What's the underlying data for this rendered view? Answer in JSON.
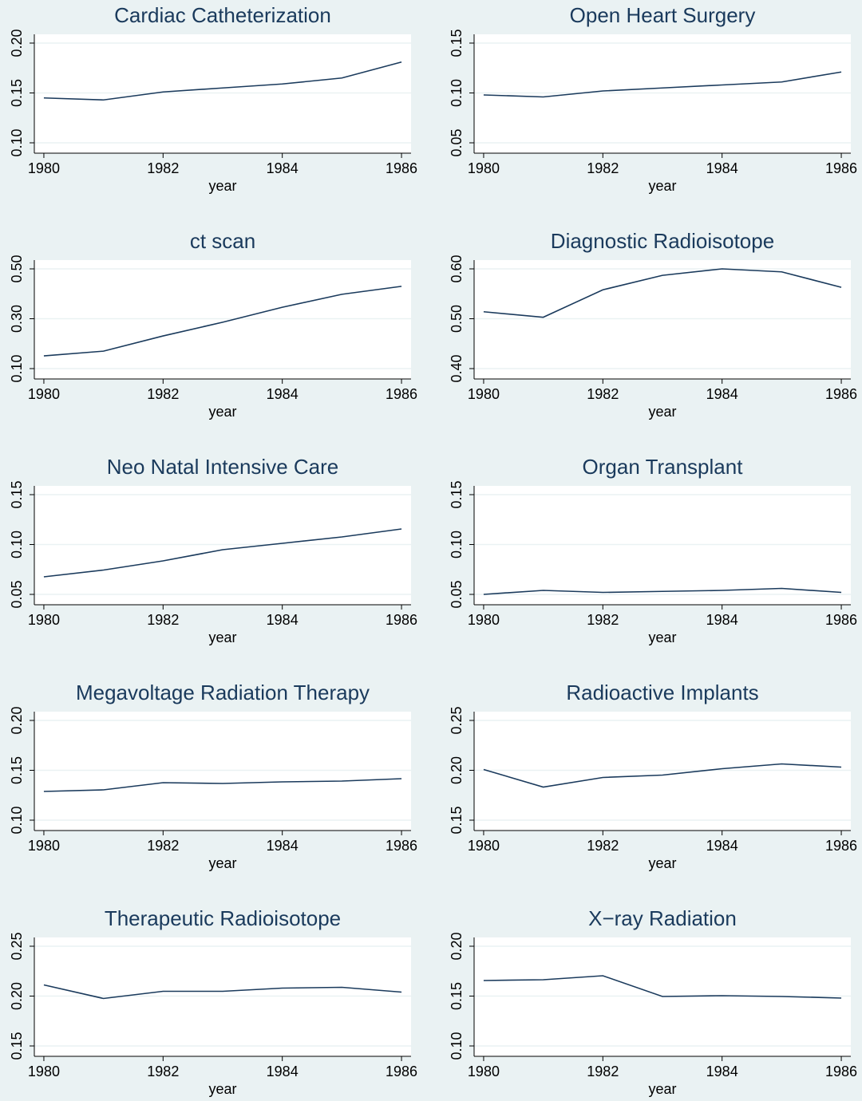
{
  "chart_data": [
    {
      "type": "line",
      "title": "Cardiac Catheterization",
      "xlabel": "year",
      "x": [
        1980,
        1981,
        1982,
        1983,
        1984,
        1985,
        1986
      ],
      "values": [
        0.145,
        0.143,
        0.151,
        0.155,
        0.159,
        0.165,
        0.181
      ],
      "color": "#1a3a5c",
      "xlim": [
        1979.84,
        1986.16
      ],
      "xticks": [
        1980,
        1982,
        1984,
        1986
      ],
      "ylim": [
        0.0896,
        0.2088
      ],
      "yticks": [
        {
          "value": 0.1,
          "label": "0.10"
        },
        0.15,
        {
          "value": 0.2,
          "label": "0.20"
        }
      ],
      "grid": true
    },
    {
      "type": "line",
      "title": "Open Heart Surgery",
      "xlabel": "year",
      "x": [
        1980,
        1981,
        1982,
        1983,
        1984,
        1985,
        1986
      ],
      "values": [
        0.098,
        0.096,
        0.102,
        0.105,
        0.108,
        0.111,
        0.121
      ],
      "color": "#1a3a5c",
      "xlim": [
        1979.84,
        1986.16
      ],
      "xticks": [
        1980,
        1982,
        1984,
        1986
      ],
      "ylim": [
        0.0396,
        0.1588
      ],
      "yticks": [
        0.05,
        {
          "value": 0.1,
          "label": "0.10"
        },
        0.15
      ],
      "grid": true
    },
    {
      "type": "line",
      "title": "ct scan",
      "xlabel": "year",
      "x": [
        1980,
        1981,
        1982,
        1983,
        1984,
        1985,
        1986
      ],
      "values": [
        0.151,
        0.17,
        0.231,
        0.286,
        0.346,
        0.398,
        0.43
      ],
      "color": "#1a3a5c",
      "xlim": [
        1979.84,
        1986.16
      ],
      "xticks": [
        1980,
        1982,
        1984,
        1986
      ],
      "ylim": [
        0.0584,
        0.5352
      ],
      "yticks": [
        {
          "value": 0.1,
          "label": "0.10"
        },
        {
          "value": 0.3,
          "label": "0.30"
        },
        {
          "value": 0.5,
          "label": "0.50"
        }
      ],
      "grid": true
    },
    {
      "type": "line",
      "title": "Diagnostic Radioisotope",
      "xlabel": "year",
      "x": [
        1980,
        1981,
        1982,
        1983,
        1984,
        1985,
        1986
      ],
      "values": [
        0.514,
        0.503,
        0.558,
        0.587,
        0.6,
        0.594,
        0.563
      ],
      "color": "#1a3a5c",
      "xlim": [
        1979.84,
        1986.16
      ],
      "xticks": [
        1980,
        1982,
        1984,
        1986
      ],
      "ylim": [
        0.3792,
        0.6176
      ],
      "yticks": [
        {
          "value": 0.4,
          "label": "0.40"
        },
        {
          "value": 0.5,
          "label": "0.50"
        },
        {
          "value": 0.6,
          "label": "0.60"
        }
      ],
      "grid": true
    },
    {
      "type": "line",
      "title": "Neo Natal Intensive Care",
      "xlabel": "year",
      "x": [
        1980,
        1981,
        1982,
        1983,
        1984,
        1985,
        1986
      ],
      "values": [
        0.0676,
        0.0744,
        0.0836,
        0.0948,
        0.1012,
        0.1076,
        0.1156
      ],
      "color": "#1a3a5c",
      "xlim": [
        1979.84,
        1986.16
      ],
      "xticks": [
        1980,
        1982,
        1984,
        1986
      ],
      "ylim": [
        0.0396,
        0.1588
      ],
      "yticks": [
        0.05,
        {
          "value": 0.1,
          "label": "0.10"
        },
        0.15
      ],
      "grid": true
    },
    {
      "type": "line",
      "title": "Organ Transplant",
      "xlabel": "year",
      "x": [
        1980,
        1981,
        1982,
        1983,
        1984,
        1985,
        1986
      ],
      "values": [
        0.05,
        0.054,
        0.052,
        0.053,
        0.054,
        0.056,
        0.052
      ],
      "color": "#1a3a5c",
      "xlim": [
        1979.84,
        1986.16
      ],
      "xticks": [
        1980,
        1982,
        1984,
        1986
      ],
      "ylim": [
        0.0396,
        0.1588
      ],
      "yticks": [
        0.05,
        {
          "value": 0.1,
          "label": "0.10"
        },
        0.15
      ],
      "grid": true
    },
    {
      "type": "line",
      "title": "Megavoltage Radiation Therapy",
      "xlabel": "year",
      "x": [
        1980,
        1981,
        1982,
        1983,
        1984,
        1985,
        1986
      ],
      "values": [
        0.1288,
        0.1304,
        0.1376,
        0.1368,
        0.1384,
        0.1392,
        0.1416
      ],
      "color": "#1a3a5c",
      "xlim": [
        1979.84,
        1986.16
      ],
      "xticks": [
        1980,
        1982,
        1984,
        1986
      ],
      "ylim": [
        0.0896,
        0.2088
      ],
      "yticks": [
        {
          "value": 0.1,
          "label": "0.10"
        },
        0.15,
        {
          "value": 0.2,
          "label": "0.20"
        }
      ],
      "grid": true
    },
    {
      "type": "line",
      "title": "Radioactive Implants",
      "xlabel": "year",
      "x": [
        1980,
        1981,
        1982,
        1983,
        1984,
        1985,
        1986
      ],
      "values": [
        0.2008,
        0.1832,
        0.1928,
        0.1952,
        0.2016,
        0.2064,
        0.2032
      ],
      "color": "#1a3a5c",
      "xlim": [
        1979.84,
        1986.16
      ],
      "xticks": [
        1980,
        1982,
        1984,
        1986
      ],
      "ylim": [
        0.1396,
        0.2588
      ],
      "yticks": [
        0.15,
        {
          "value": 0.2,
          "label": "0.20"
        },
        0.25
      ],
      "grid": true
    },
    {
      "type": "line",
      "title": "Therapeutic Radioisotope",
      "xlabel": "year",
      "x": [
        1980,
        1981,
        1982,
        1983,
        1984,
        1985,
        1986
      ],
      "values": [
        0.2112,
        0.1976,
        0.2048,
        0.2048,
        0.208,
        0.2088,
        0.204
      ],
      "color": "#1a3a5c",
      "xlim": [
        1979.84,
        1986.16
      ],
      "xticks": [
        1980,
        1982,
        1984,
        1986
      ],
      "ylim": [
        0.1396,
        0.2588
      ],
      "yticks": [
        0.15,
        {
          "value": 0.2,
          "label": "0.20"
        },
        0.25
      ],
      "grid": true
    },
    {
      "type": "line",
      "title": "X−ray Radiation",
      "xlabel": "year",
      "x": [
        1980,
        1981,
        1982,
        1983,
        1984,
        1985,
        1986
      ],
      "values": [
        0.1656,
        0.1664,
        0.1704,
        0.1496,
        0.1504,
        0.1496,
        0.148
      ],
      "color": "#1a3a5c",
      "xlim": [
        1979.84,
        1986.16
      ],
      "xticks": [
        1980,
        1982,
        1984,
        1986
      ],
      "ylim": [
        0.0896,
        0.2088
      ],
      "yticks": [
        {
          "value": 0.1,
          "label": "0.10"
        },
        0.15,
        {
          "value": 0.2,
          "label": "0.20"
        }
      ],
      "grid": true
    }
  ]
}
